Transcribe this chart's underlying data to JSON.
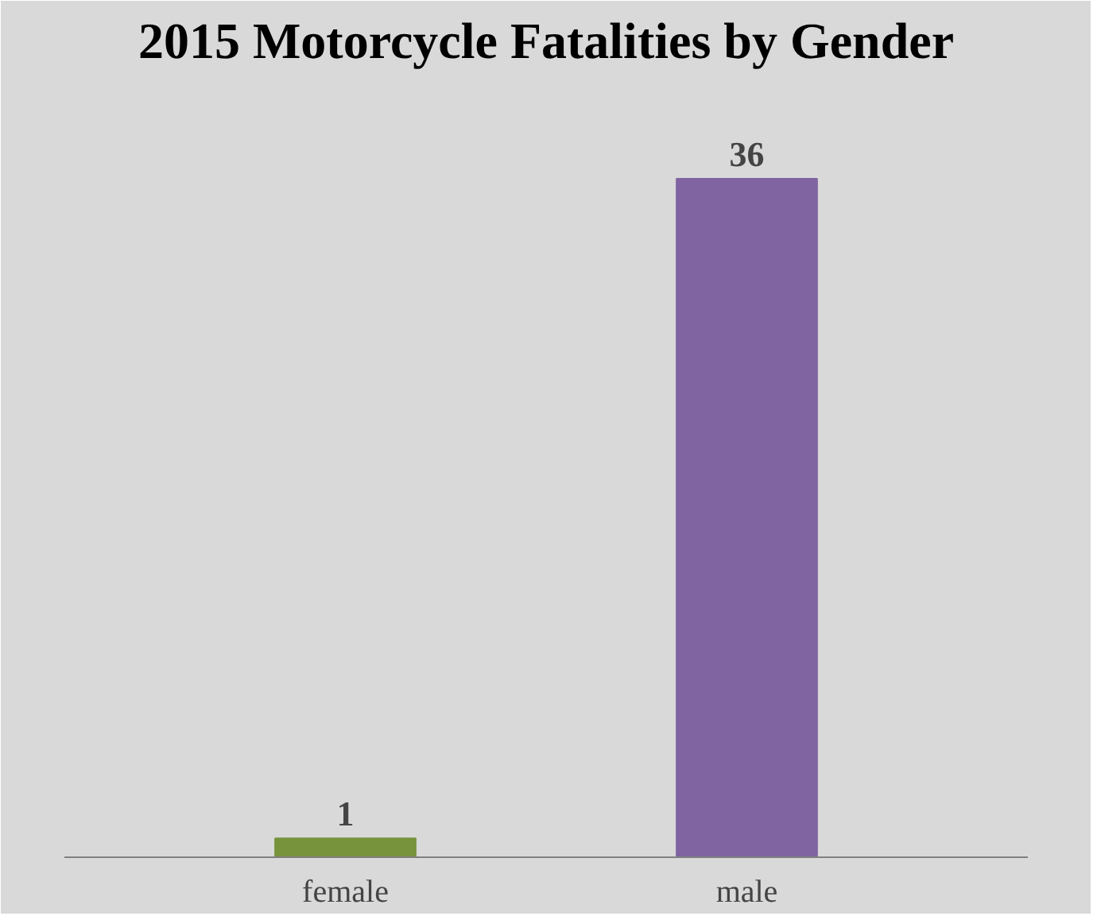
{
  "chart_data": {
    "type": "bar",
    "title": "2015 Motorcycle Fatalities by Gender",
    "categories": [
      "female",
      "male"
    ],
    "values": [
      1,
      36
    ],
    "colors": [
      "#77933c",
      "#8064a2"
    ],
    "data_labels": true
  }
}
